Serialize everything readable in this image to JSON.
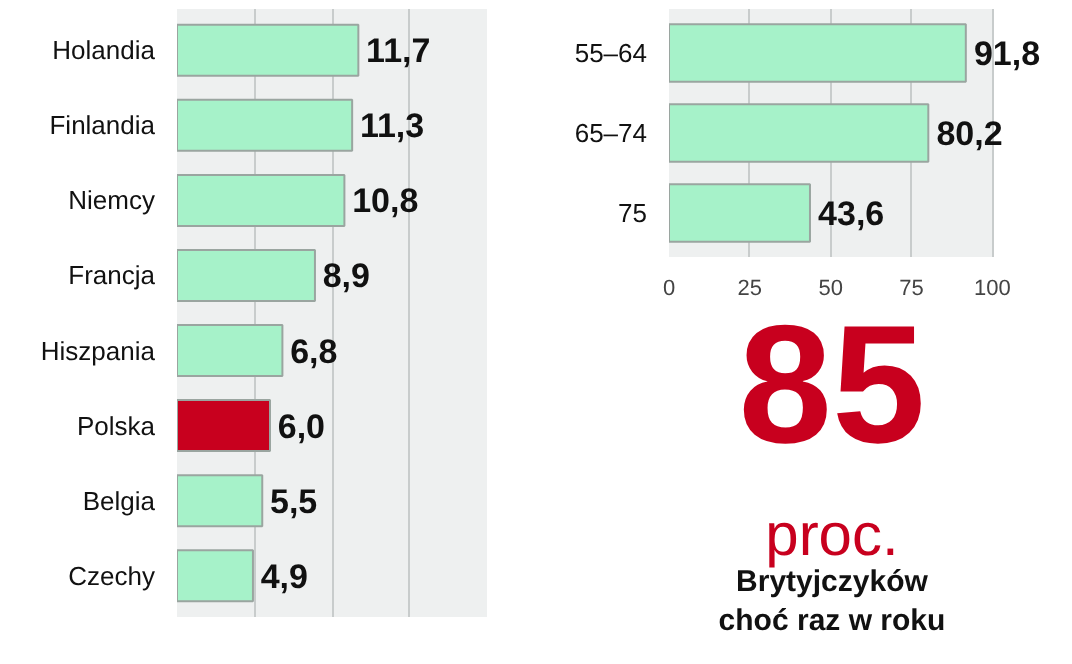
{
  "chart_data": [
    {
      "type": "bar",
      "orientation": "horizontal",
      "categories": [
        "Holandia",
        "Finlandia",
        "Niemcy",
        "Francja",
        "Hiszpania",
        "Polska",
        "Belgia",
        "Czechy"
      ],
      "values": [
        11.7,
        11.3,
        10.8,
        8.9,
        6.8,
        6.0,
        5.5,
        4.9
      ],
      "value_labels": [
        "11,7",
        "11,3",
        "10,8",
        "8,9",
        "6,8",
        "6,0",
        "5,5",
        "4,9"
      ],
      "colors": [
        "#a6f2c9",
        "#a6f2c9",
        "#a6f2c9",
        "#a6f2c9",
        "#a6f2c9",
        "#c8001e",
        "#a6f2c9",
        "#a6f2c9"
      ],
      "xlim": [
        0,
        20
      ],
      "xticks": [
        {
          "value": 5,
          "label": null
        },
        {
          "value": 10,
          "label": null
        },
        {
          "value": 15,
          "label": null
        }
      ],
      "grid": "x",
      "tick_labels": "y"
    },
    {
      "type": "bar",
      "orientation": "horizontal",
      "categories": [
        "55–64",
        "65–74",
        "75"
      ],
      "values": [
        91.8,
        80.2,
        43.6
      ],
      "value_labels": [
        "91,8",
        "80,2",
        "43,6"
      ],
      "colors": [
        "#a6f2c9",
        "#a6f2c9",
        "#a6f2c9"
      ],
      "xlim": [
        0,
        100
      ],
      "xticks": [
        0,
        25,
        50,
        75,
        100
      ],
      "grid": "x"
    },
    {
      "type": "other",
      "title": "85",
      "subtitle": "proc.",
      "annotations": [
        "Brytyjczyków",
        "choć raz w roku"
      ],
      "color": "#c8001e"
    }
  ]
}
